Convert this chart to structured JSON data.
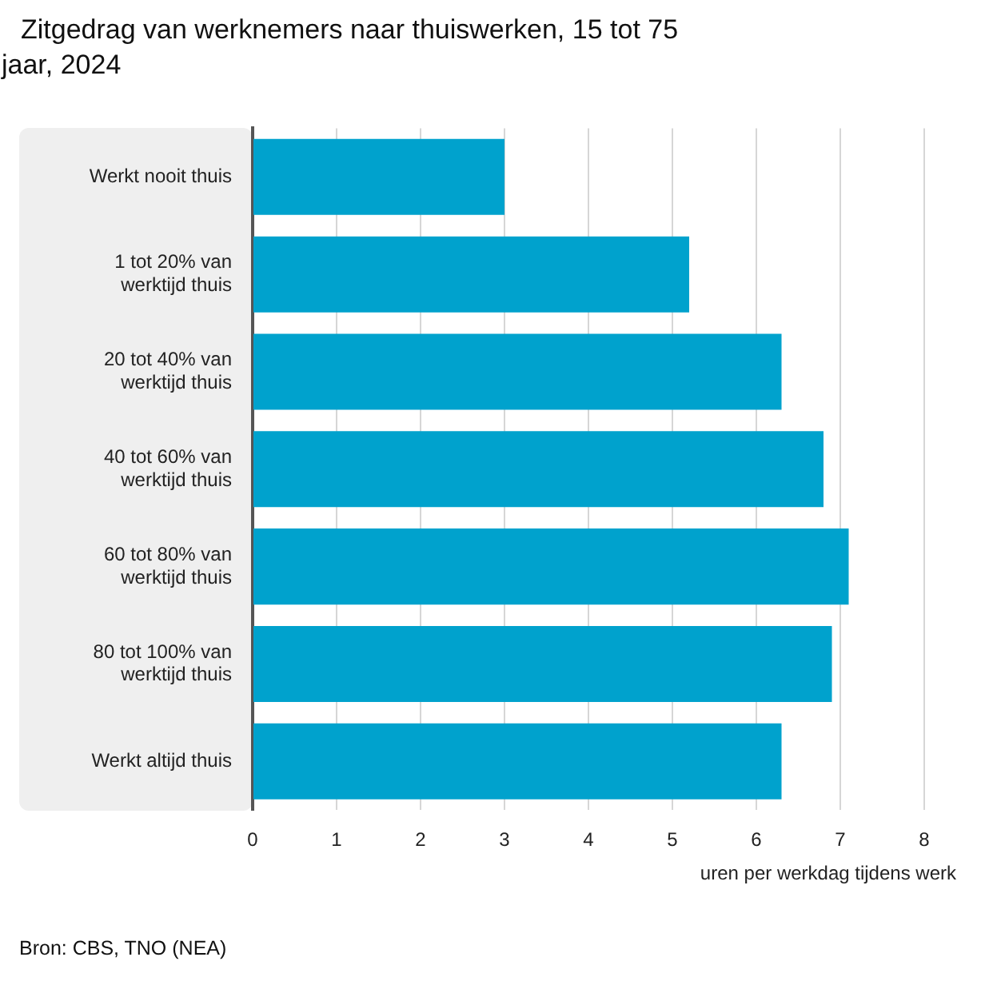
{
  "chart_data": {
    "type": "bar",
    "orientation": "horizontal",
    "title": "Zitgedrag van werknemers naar thuiswerken, 15 tot 75 jaar, 2024",
    "xlabel": "uren per werkdag tijdens werk",
    "categories": [
      "Werkt nooit thuis",
      "1 tot 20% van werktijd thuis",
      "20 tot 40% van werktijd thuis",
      "40 tot 60% van werktijd thuis",
      "60 tot 80% van werktijd thuis",
      "80 tot 100% van werktijd thuis",
      "Werkt altijd thuis"
    ],
    "values": [
      3.0,
      5.2,
      6.3,
      6.8,
      7.1,
      6.9,
      6.3
    ],
    "color": "#00a2cd",
    "xlim": [
      0,
      8
    ],
    "xticks": [
      0,
      1,
      2,
      3,
      4,
      5,
      6,
      7,
      8
    ],
    "grid": "x",
    "legend": false,
    "annotations": [
      "Bron: CBS, TNO (NEA)"
    ]
  }
}
